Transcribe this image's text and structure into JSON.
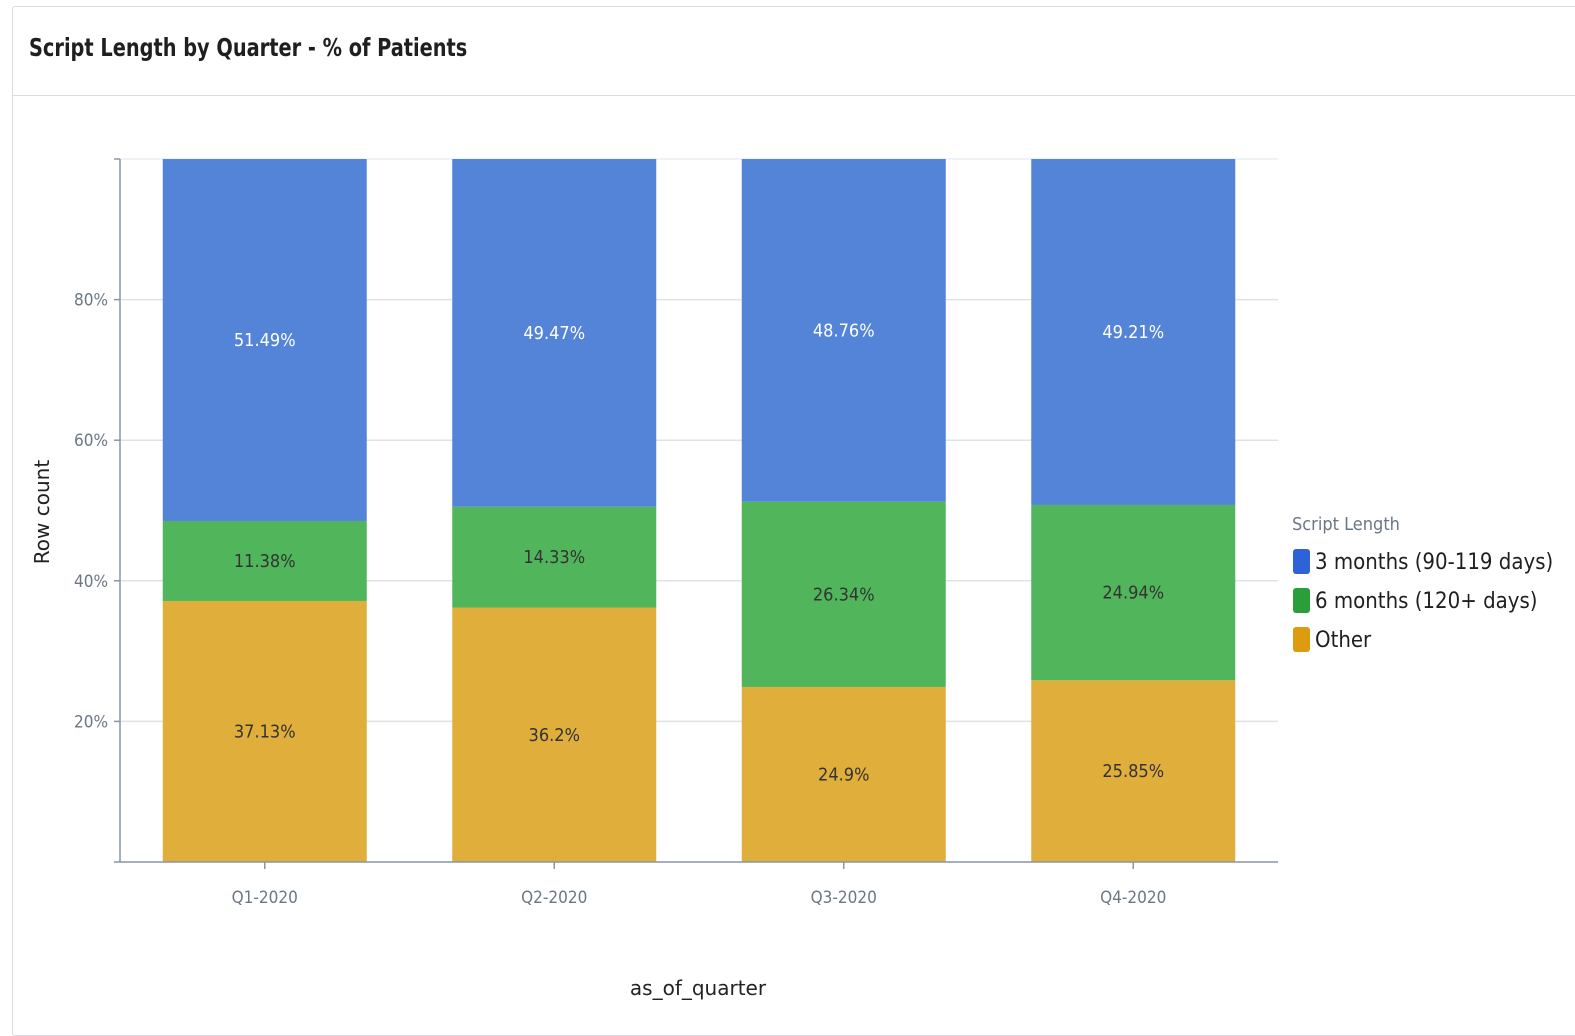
{
  "card": {
    "title": "Script Length by Quarter - % of Patients"
  },
  "chart_data": {
    "type": "bar",
    "stacked": true,
    "categories": [
      "Q1-2020",
      "Q2-2020",
      "Q3-2020",
      "Q4-2020"
    ],
    "series": [
      {
        "name": "Other",
        "color": "#e0ae3a",
        "values": [
          37.13,
          36.2,
          24.9,
          25.85
        ],
        "labels": [
          "37.13%",
          "36.2%",
          "24.9%",
          "25.85%"
        ],
        "label_color": "#333333"
      },
      {
        "name": "6 months (120+ days)",
        "color": "#51b55b",
        "values": [
          11.38,
          14.33,
          26.34,
          24.94
        ],
        "labels": [
          "11.38%",
          "14.33%",
          "26.34%",
          "24.94%"
        ],
        "label_color": "#333333"
      },
      {
        "name": "3 months (90-119 days)",
        "color": "#5484d7",
        "values": [
          51.49,
          49.47,
          48.76,
          49.21
        ],
        "labels": [
          "51.49%",
          "49.47%",
          "48.76%",
          "49.21%"
        ],
        "label_color": "#ffffff"
      }
    ],
    "xlabel": "as_of_quarter",
    "ylabel": "Row count",
    "ylim": [
      0,
      100
    ],
    "yticks": [
      20,
      40,
      60,
      80
    ],
    "ytick_labels": [
      "20%",
      "40%",
      "60%",
      "80%"
    ],
    "grid": true,
    "legend": {
      "title": "Script Length",
      "position": "right",
      "items": [
        {
          "label": "3 months (90-119 days)",
          "color": "#2e63d8"
        },
        {
          "label": "6 months (120+ days)",
          "color": "#2a9e38"
        },
        {
          "label": "Other",
          "color": "#dd9c0f"
        }
      ]
    }
  }
}
